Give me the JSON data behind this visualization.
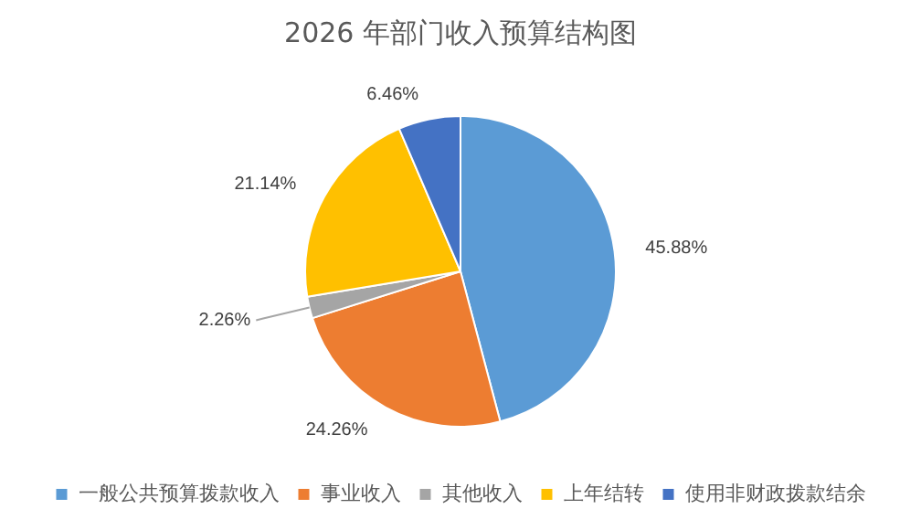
{
  "chart_data": {
    "type": "pie",
    "title": "2026 年部门收入预算结构图",
    "categories": [
      "一般公共预算拨款收入",
      "事业收入",
      "其他收入",
      "上年结转",
      "使用非财政拨款结余"
    ],
    "values": [
      45.88,
      24.26,
      2.26,
      21.14,
      6.46
    ],
    "value_labels": [
      "45.88%",
      "24.26%",
      "2.26%",
      "21.14%",
      "6.46%"
    ],
    "colors": [
      "#5b9bd5",
      "#ed7d31",
      "#a5a5a5",
      "#ffc000",
      "#4472c4"
    ],
    "legend": "bottom"
  }
}
